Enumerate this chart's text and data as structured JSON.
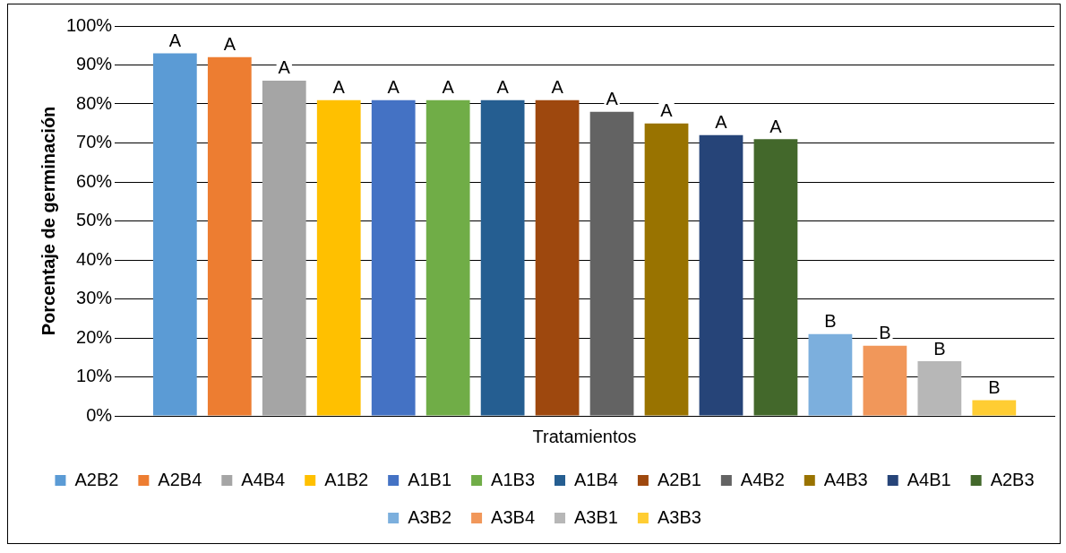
{
  "chart_data": {
    "type": "bar",
    "xlabel": "Tratamientos",
    "ylabel": "Porcentaje de germinación",
    "categories": [
      null
    ],
    "series": [
      {
        "name": "A2B2",
        "color": "#5b9bd5",
        "values": [
          93
        ]
      },
      {
        "name": "A2B4",
        "color": "#ed7d31",
        "values": [
          92
        ]
      },
      {
        "name": "A4B4",
        "color": "#a5a5a5",
        "values": [
          86
        ]
      },
      {
        "name": "A1B2",
        "color": "#ffc000",
        "values": [
          81
        ]
      },
      {
        "name": "A1B1",
        "color": "#4472c4",
        "values": [
          81
        ]
      },
      {
        "name": "A1B3",
        "color": "#70ad47",
        "values": [
          81
        ]
      },
      {
        "name": "A1B4",
        "color": "#255e91",
        "values": [
          81
        ]
      },
      {
        "name": "A2B1",
        "color": "#9e480e",
        "values": [
          81
        ]
      },
      {
        "name": "A4B2",
        "color": "#636363",
        "values": [
          78
        ]
      },
      {
        "name": "A4B3",
        "color": "#997300",
        "values": [
          75
        ]
      },
      {
        "name": "A4B1",
        "color": "#264478",
        "values": [
          72
        ]
      },
      {
        "name": "A2B3",
        "color": "#43682b",
        "values": [
          71
        ]
      },
      {
        "name": "A3B2",
        "color": "#7cafdd",
        "values": [
          21
        ]
      },
      {
        "name": "A3B4",
        "color": "#f1975a",
        "values": [
          18
        ]
      },
      {
        "name": "A3B1",
        "color": "#b7b7b7",
        "values": [
          14
        ]
      },
      {
        "name": "A3B3",
        "color": "#ffcd33",
        "values": [
          4
        ]
      }
    ],
    "annotations": [
      "A",
      "A",
      "A",
      "A",
      "A",
      "A",
      "A",
      "A",
      "A",
      "A",
      "A",
      "A",
      "B",
      "B",
      "B",
      "B"
    ],
    "ylim": [
      0,
      100
    ],
    "yticks": [
      {
        "value": 0,
        "label": "0%"
      },
      {
        "value": 10,
        "label": "10%"
      },
      {
        "value": 20,
        "label": "20%"
      },
      {
        "value": 30,
        "label": "30%"
      },
      {
        "value": 40,
        "label": "40%"
      },
      {
        "value": 50,
        "label": "50%"
      },
      {
        "value": 60,
        "label": "60%"
      },
      {
        "value": 70,
        "label": "70%"
      },
      {
        "value": 80,
        "label": "80%"
      },
      {
        "value": 90,
        "label": "90%"
      },
      {
        "value": 100,
        "label": "100%"
      }
    ],
    "grid": "y",
    "legend": "bottom"
  }
}
